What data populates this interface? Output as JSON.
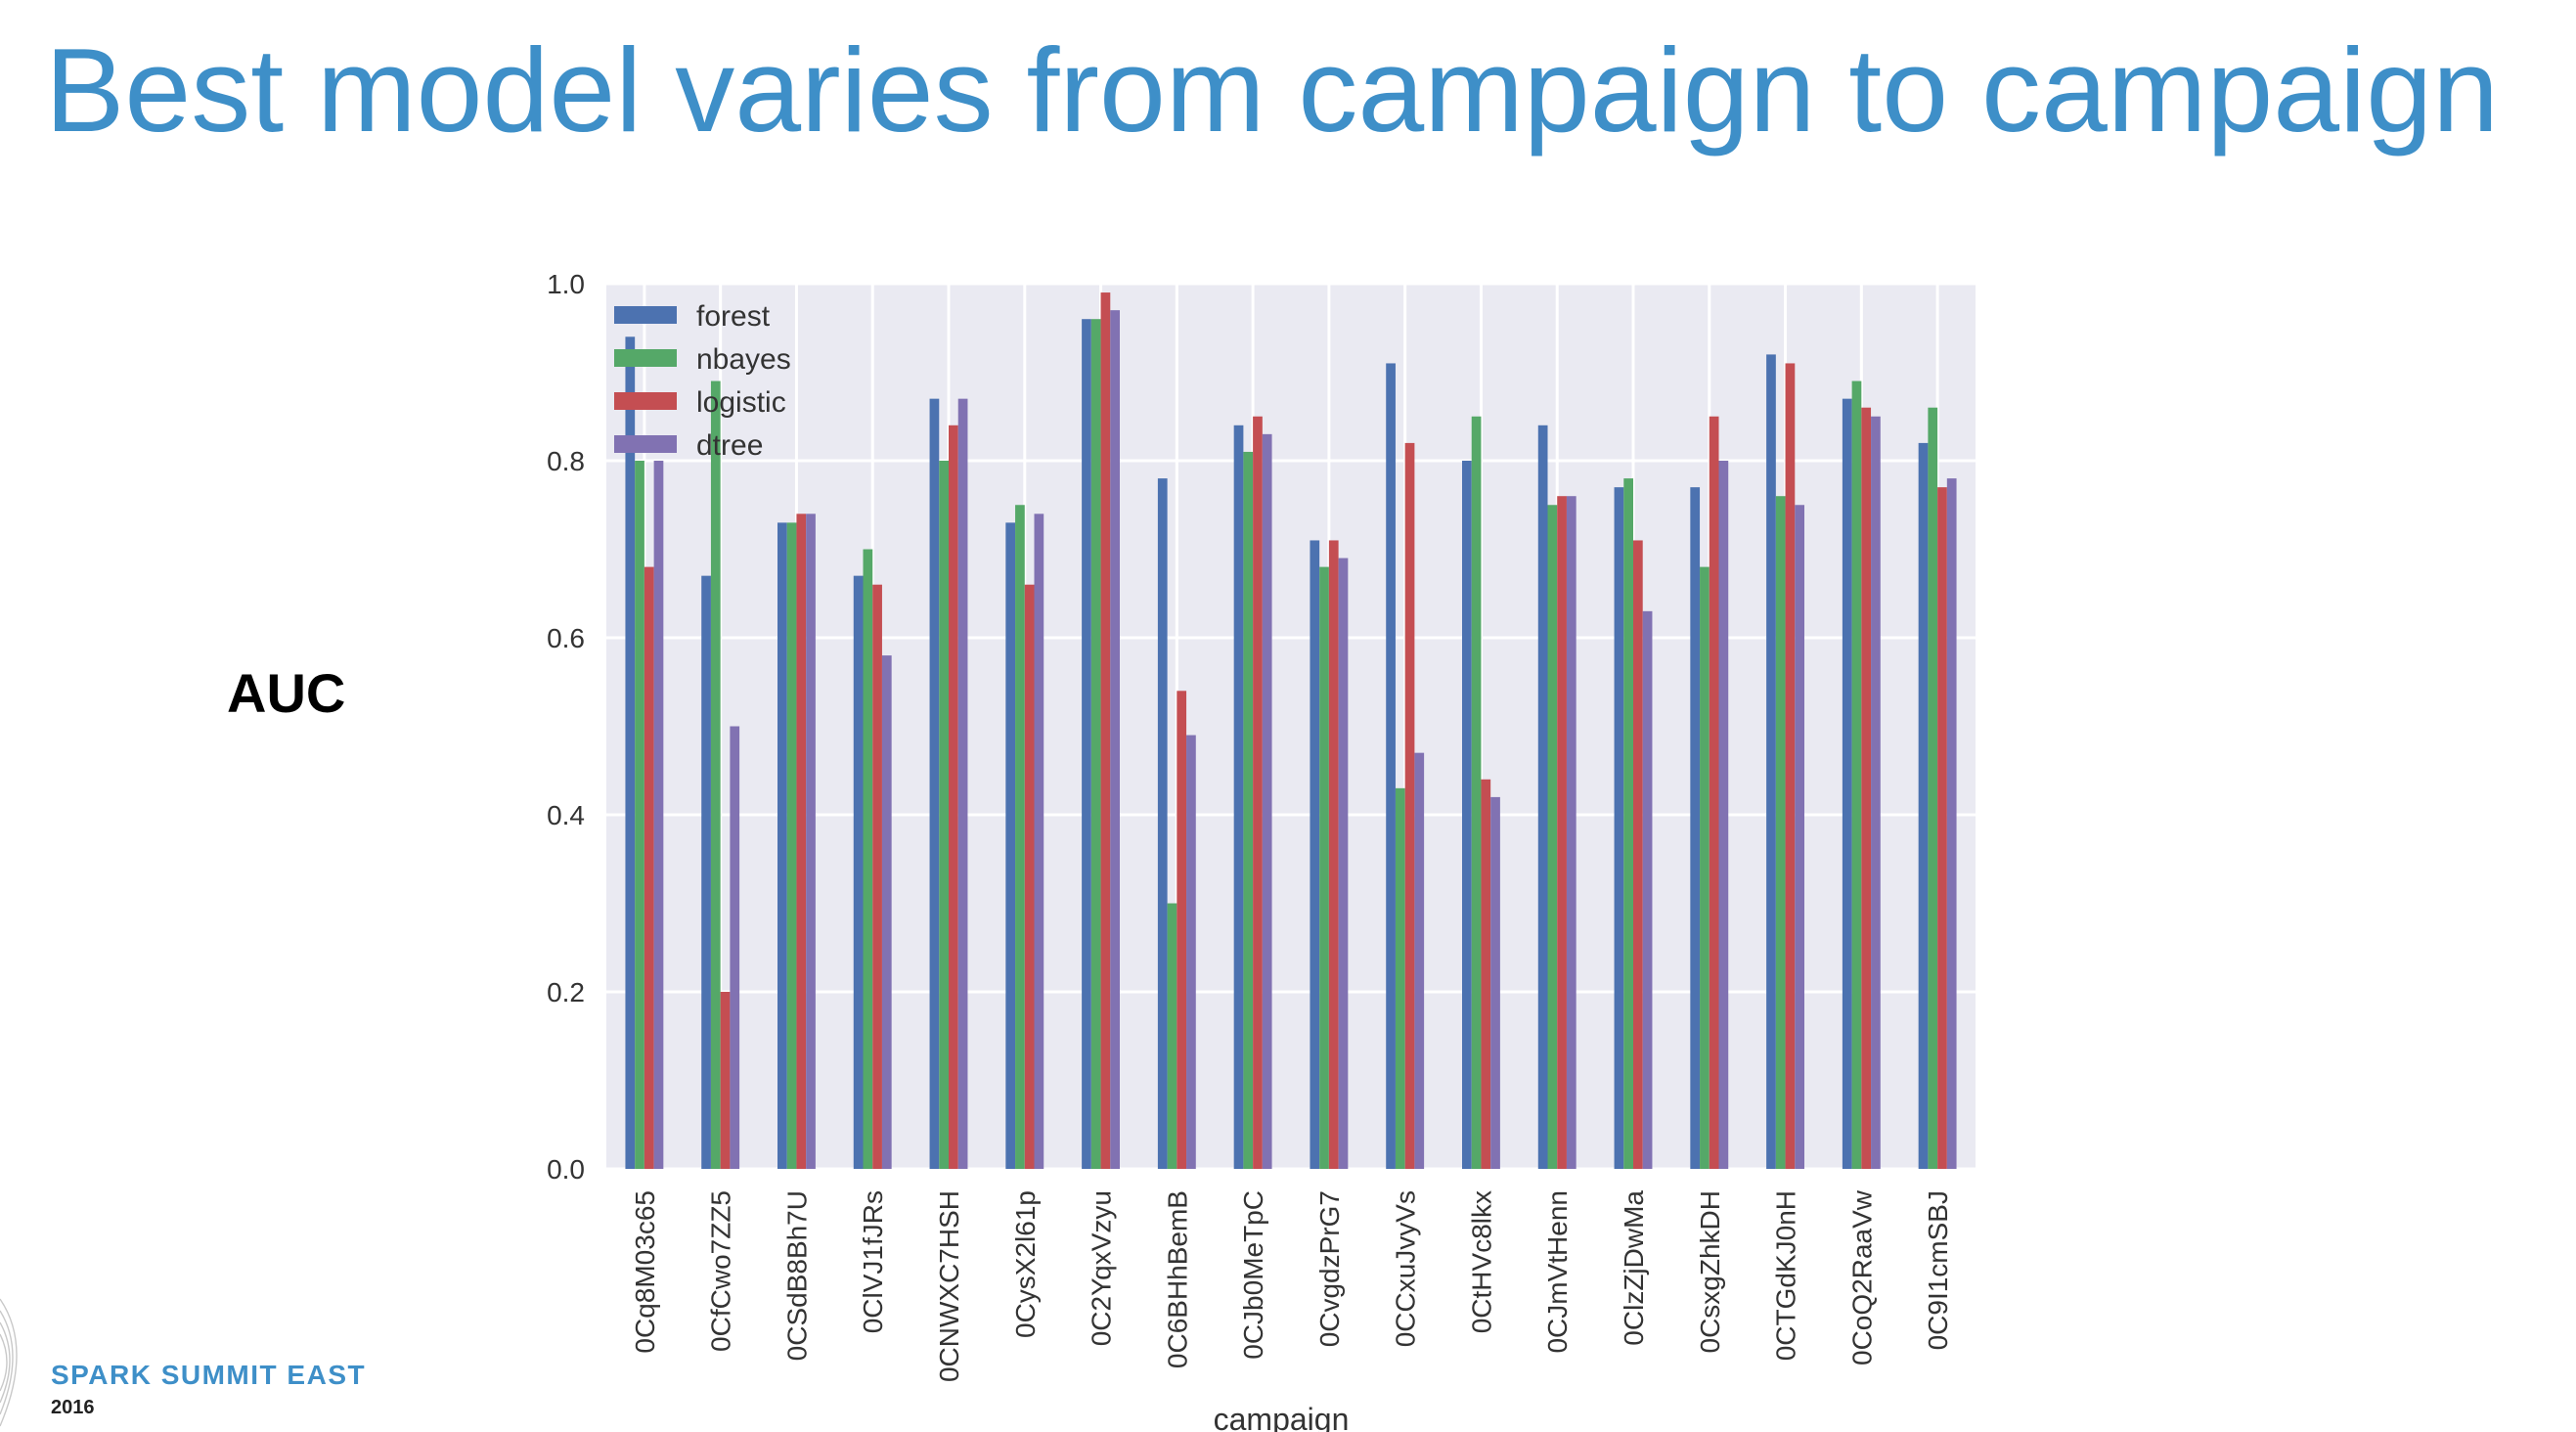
{
  "slide": {
    "title": "Best model varies from campaign to campaign",
    "side_label": "AUC",
    "brand": {
      "name": "SPARK SUMMIT EAST",
      "year": "2016"
    }
  },
  "chart_data": {
    "type": "bar",
    "xlabel": "campaign",
    "ylabel": "",
    "ylim": [
      0,
      1.0
    ],
    "yticks": [
      "0.0",
      "0.2",
      "0.4",
      "0.6",
      "0.8",
      "1.0"
    ],
    "grid": true,
    "legend_position": "top-left",
    "categories": [
      "0Cq8M03c65",
      "0CfCwo7ZZ5",
      "0CSdB8Bh7U",
      "0ClVJ1fJRs",
      "0CNWXC7HSH",
      "0CysX2l61p",
      "0C2YqxVzyu",
      "0C6BHhBemB",
      "0CJb0MeTpC",
      "0CvgdzPrG7",
      "0CCxuJvyVs",
      "0CtHVc8lkx",
      "0CJmVtHenn",
      "0ClzZjDwMa",
      "0CsxgZhkDH",
      "0CTGdKJ0nH",
      "0CoQ2RaaVw",
      "0C9I1cmSBJ"
    ],
    "series": [
      {
        "name": "forest",
        "color": "#4c72b0",
        "values": [
          0.94,
          0.67,
          0.73,
          0.67,
          0.87,
          0.73,
          0.96,
          0.78,
          0.84,
          0.71,
          0.91,
          0.8,
          0.84,
          0.77,
          0.77,
          0.92,
          0.87,
          0.82
        ]
      },
      {
        "name": "nbayes",
        "color": "#55a868",
        "values": [
          0.8,
          0.89,
          0.73,
          0.7,
          0.8,
          0.75,
          0.96,
          0.3,
          0.81,
          0.68,
          0.43,
          0.85,
          0.75,
          0.78,
          0.68,
          0.76,
          0.89,
          0.86
        ]
      },
      {
        "name": "logistic",
        "color": "#c44e52",
        "values": [
          0.68,
          0.2,
          0.74,
          0.66,
          0.84,
          0.66,
          0.99,
          0.54,
          0.85,
          0.71,
          0.82,
          0.44,
          0.76,
          0.71,
          0.85,
          0.91,
          0.86,
          0.77
        ]
      },
      {
        "name": "dtree",
        "color": "#8172b2",
        "values": [
          0.8,
          0.5,
          0.74,
          0.58,
          0.87,
          0.74,
          0.97,
          0.49,
          0.83,
          0.69,
          0.47,
          0.42,
          0.76,
          0.63,
          0.8,
          0.75,
          0.85,
          0.78
        ]
      }
    ]
  }
}
